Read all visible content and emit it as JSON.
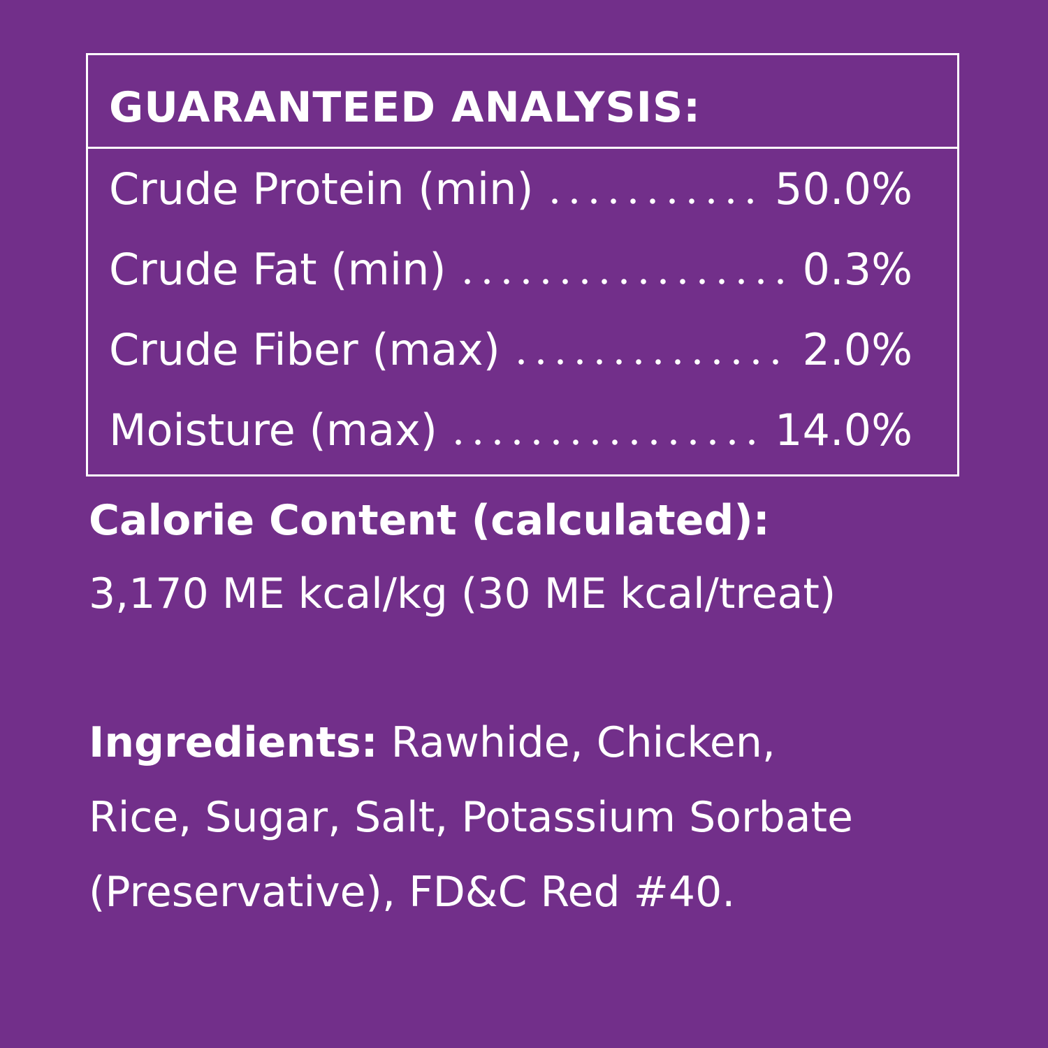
{
  "header": {
    "title": "GUARANTEED ANALYSIS:"
  },
  "table": {
    "rows": [
      [
        "Crude Protein (min)",
        "50.0%"
      ],
      [
        "Crude Fat (min)",
        "0.3%"
      ],
      [
        "Crude Fiber (max)",
        "2.0%"
      ],
      [
        "Moisture (max)",
        "14.0%"
      ]
    ]
  },
  "calorie": {
    "heading": "Calorie Content (calculated):",
    "text": "3,170 ME kcal/kg (30 ME kcal/treat)"
  },
  "ingredients": {
    "label": "Ingredients:",
    "text": "Rawhide, Chicken, Rice, Sugar, Salt, Potassium Sorbate (Preservative), FD&C Red #40."
  }
}
